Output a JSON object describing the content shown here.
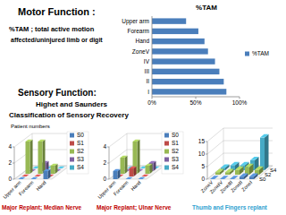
{
  "texts": {
    "motor_title": "Motor Function :",
    "motor_line1": "%TAM ; total active motion",
    "motor_line2": "affected/uninjured limb or digit",
    "sensory_title": "Sensory Function:",
    "sensory_line1": "Highet and Saunders",
    "sensory_line2": "Classification of Sensory Recovery",
    "patient_numbers": "Patient numbers"
  },
  "chart_data": [
    {
      "type": "bar",
      "orientation": "horizontal",
      "title": "%TAM",
      "categories": [
        "I",
        "II",
        "III",
        "IV",
        "ZoneV",
        "Hand",
        "Forearm",
        "Upper arm"
      ],
      "series": [
        {
          "name": "%TAM",
          "color": "#4a7ebb",
          "values": [
            85,
            82,
            77,
            72,
            64,
            60,
            53,
            39
          ]
        }
      ],
      "xlim": [
        0,
        100
      ],
      "xticks": [
        {
          "value": 0,
          "label": "0%"
        },
        {
          "value": 50,
          "label": "50%"
        },
        {
          "value": 100,
          "label": "100%"
        }
      ],
      "legend": "right",
      "grid": false
    },
    {
      "type": "bar3d",
      "title": "Major Replant; Median Nerve",
      "categories": [
        "Upper arm",
        "Forearm",
        "Hand"
      ],
      "series": [
        {
          "name": "S0",
          "color": "#4a7ebb",
          "values": [
            0,
            0,
            1
          ]
        },
        {
          "name": "S1",
          "color": "#be4b48",
          "values": [
            0,
            0,
            0
          ]
        },
        {
          "name": "S2",
          "color": "#98b954",
          "values": [
            4,
            4,
            1
          ]
        },
        {
          "name": "S3",
          "color": "#7d60a0",
          "values": [
            0,
            1,
            0
          ]
        },
        {
          "name": "S4",
          "color": "#46aac5",
          "values": [
            0,
            0,
            0
          ]
        }
      ],
      "ylim": [
        0,
        4
      ],
      "yticks": [
        0,
        2,
        4
      ],
      "legend": "right",
      "grid": true
    },
    {
      "type": "bar3d",
      "title": "Major Replant; Ulnar Nerve",
      "categories": [
        "Upper arm",
        "Forearm",
        "Hand"
      ],
      "series": [
        {
          "name": "S0",
          "color": "#4a7ebb",
          "values": [
            1,
            0,
            0
          ]
        },
        {
          "name": "S1",
          "color": "#be4b48",
          "values": [
            0,
            1,
            0
          ]
        },
        {
          "name": "S2",
          "color": "#98b954",
          "values": [
            2,
            4,
            1
          ]
        },
        {
          "name": "S3",
          "color": "#7d60a0",
          "values": [
            0,
            0,
            1
          ]
        },
        {
          "name": "S4",
          "color": "#46aac5",
          "values": [
            0,
            0,
            0
          ]
        }
      ],
      "ylim": [
        0,
        4
      ],
      "yticks": [
        0,
        2,
        4
      ],
      "legend": "right",
      "grid": true
    },
    {
      "type": "bar3d",
      "title": "Thumb and Fingers replant",
      "categories": [
        "ZoneV",
        "ZoneIV",
        "ZoneIII",
        "ZoneII",
        "ZoneI"
      ],
      "series": [
        {
          "name": "S0",
          "color": "#4a7ebb",
          "values": [
            0,
            0,
            0,
            1,
            1
          ]
        },
        {
          "name": "S2",
          "color": "#98b954",
          "values": [
            1,
            1,
            2,
            3,
            2
          ]
        },
        {
          "name": "S4",
          "color": "#46aac5",
          "values": [
            1,
            2,
            2,
            4,
            13
          ]
        }
      ],
      "ylim": [
        0,
        15
      ],
      "yticks": [
        0,
        5,
        10,
        15
      ],
      "grid": true
    }
  ]
}
